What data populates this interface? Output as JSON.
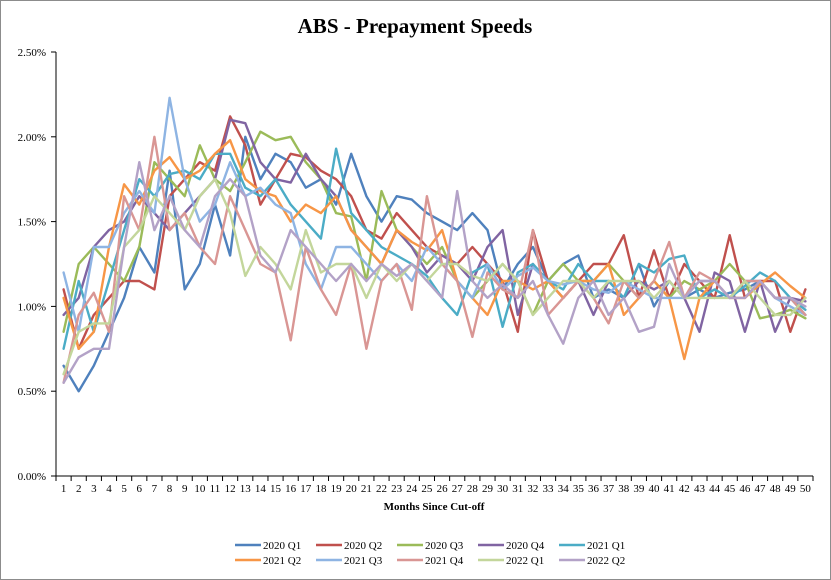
{
  "chart_data": {
    "type": "line",
    "title": "ABS - Prepayment Speeds",
    "xlabel": "Months Since Cut-off",
    "ylabel": "",
    "ylim": [
      0,
      0.025
    ],
    "ytick_values": [
      0,
      0.005,
      0.01,
      0.015,
      0.02,
      0.025
    ],
    "ytick_labels": [
      "0.00%",
      "0.50%",
      "1.00%",
      "1.50%",
      "2.00%",
      "2.50%"
    ],
    "x": [
      1,
      2,
      3,
      4,
      5,
      6,
      7,
      8,
      9,
      10,
      11,
      12,
      13,
      14,
      15,
      16,
      17,
      18,
      19,
      20,
      21,
      22,
      23,
      24,
      25,
      26,
      27,
      28,
      29,
      30,
      31,
      32,
      33,
      34,
      35,
      36,
      37,
      38,
      39,
      40,
      41,
      42,
      43,
      44,
      45,
      46,
      47,
      48,
      49,
      50
    ],
    "grid": false,
    "legend_position": "bottom",
    "series": [
      {
        "name": "2020 Q1",
        "color": "#4f81bd",
        "values": [
          0.0065,
          0.005,
          0.0065,
          0.0085,
          0.0105,
          0.0135,
          0.012,
          0.018,
          0.011,
          0.0125,
          0.016,
          0.013,
          0.02,
          0.0175,
          0.019,
          0.0185,
          0.017,
          0.0175,
          0.016,
          0.019,
          0.0165,
          0.015,
          0.0165,
          0.0163,
          0.0155,
          0.015,
          0.0145,
          0.0155,
          0.0145,
          0.011,
          0.0125,
          0.0135,
          0.0115,
          0.0125,
          0.013,
          0.0105,
          0.011,
          0.0105,
          0.0125,
          0.01,
          0.0115,
          0.0105,
          0.011,
          0.0105,
          0.0108,
          0.011,
          0.0115,
          0.0105,
          0.0105,
          0.0095
        ]
      },
      {
        "name": "2020 Q2",
        "color": "#c0504d",
        "values": [
          0.011,
          0.0075,
          0.0095,
          0.0105,
          0.0115,
          0.0115,
          0.011,
          0.0165,
          0.0175,
          0.0185,
          0.018,
          0.0212,
          0.0195,
          0.016,
          0.0175,
          0.019,
          0.0188,
          0.018,
          0.0175,
          0.0165,
          0.0145,
          0.014,
          0.0155,
          0.0145,
          0.0135,
          0.013,
          0.0125,
          0.0135,
          0.0125,
          0.0115,
          0.0085,
          0.0145,
          0.0115,
          0.0105,
          0.0115,
          0.0125,
          0.0125,
          0.0142,
          0.0105,
          0.0133,
          0.0105,
          0.0125,
          0.0115,
          0.0105,
          0.0142,
          0.0105,
          0.0115,
          0.0115,
          0.0085,
          0.011
        ]
      },
      {
        "name": "2020 Q3",
        "color": "#9bbb59",
        "values": [
          0.0085,
          0.0125,
          0.0135,
          0.0125,
          0.0115,
          0.0135,
          0.0185,
          0.0175,
          0.0165,
          0.0195,
          0.0175,
          0.0168,
          0.0185,
          0.0203,
          0.0198,
          0.02,
          0.0185,
          0.0175,
          0.0155,
          0.0153,
          0.0115,
          0.0168,
          0.0145,
          0.0135,
          0.0125,
          0.0135,
          0.0115,
          0.0105,
          0.0115,
          0.0125,
          0.0115,
          0.0095,
          0.0115,
          0.0125,
          0.0115,
          0.0115,
          0.0125,
          0.0115,
          0.0105,
          0.0115,
          0.0105,
          0.0115,
          0.011,
          0.0115,
          0.0125,
          0.0115,
          0.0093,
          0.0095,
          0.0098,
          0.0093
        ]
      },
      {
        "name": "2020 Q4",
        "color": "#8064a2",
        "values": [
          0.0095,
          0.0105,
          0.0135,
          0.0145,
          0.015,
          0.0165,
          0.0155,
          0.0145,
          0.0155,
          0.0165,
          0.0175,
          0.021,
          0.0208,
          0.0185,
          0.0175,
          0.0173,
          0.019,
          0.0175,
          0.0165,
          0.0145,
          0.0135,
          0.0125,
          0.0145,
          0.0135,
          0.012,
          0.013,
          0.0125,
          0.0115,
          0.0135,
          0.0145,
          0.0095,
          0.0125,
          0.0115,
          0.0105,
          0.0115,
          0.0095,
          0.0115,
          0.0105,
          0.0115,
          0.011,
          0.0115,
          0.0105,
          0.0085,
          0.012,
          0.0115,
          0.0085,
          0.0115,
          0.0085,
          0.0105,
          0.0103
        ]
      },
      {
        "name": "2021 Q1",
        "color": "#4bacc6",
        "values": [
          0.0075,
          0.0115,
          0.0085,
          0.0115,
          0.0145,
          0.0175,
          0.0165,
          0.0178,
          0.018,
          0.0175,
          0.019,
          0.019,
          0.017,
          0.0165,
          0.0175,
          0.016,
          0.015,
          0.014,
          0.0193,
          0.0155,
          0.0145,
          0.0135,
          0.013,
          0.0125,
          0.0118,
          0.0105,
          0.0095,
          0.012,
          0.0125,
          0.0088,
          0.012,
          0.0125,
          0.0115,
          0.011,
          0.0125,
          0.0115,
          0.0115,
          0.0105,
          0.0125,
          0.012,
          0.0128,
          0.013,
          0.0105,
          0.011,
          0.0105,
          0.0112,
          0.012,
          0.0115,
          0.0105,
          0.0098
        ]
      },
      {
        "name": "2021 Q2",
        "color": "#f79646",
        "values": [
          0.0105,
          0.0075,
          0.0085,
          0.0135,
          0.0172,
          0.016,
          0.018,
          0.0188,
          0.0175,
          0.018,
          0.019,
          0.0198,
          0.0175,
          0.0168,
          0.0165,
          0.015,
          0.016,
          0.0155,
          0.0165,
          0.0145,
          0.0135,
          0.0125,
          0.0145,
          0.0138,
          0.0133,
          0.0145,
          0.0115,
          0.0105,
          0.0095,
          0.0115,
          0.0115,
          0.011,
          0.0115,
          0.0105,
          0.0115,
          0.0115,
          0.0125,
          0.0095,
          0.0105,
          0.0115,
          0.0105,
          0.0069,
          0.0105,
          0.0115,
          0.0105,
          0.0105,
          0.0113,
          0.012,
          0.0112,
          0.0105
        ]
      },
      {
        "name": "2021 Q3",
        "color": "#8eb4e3",
        "values": [
          0.012,
          0.0085,
          0.0135,
          0.0135,
          0.0155,
          0.0168,
          0.0155,
          0.0223,
          0.0175,
          0.015,
          0.016,
          0.0185,
          0.0165,
          0.017,
          0.016,
          0.0155,
          0.0125,
          0.011,
          0.0135,
          0.0135,
          0.0125,
          0.0115,
          0.0125,
          0.0115,
          0.0135,
          0.0125,
          0.0115,
          0.0105,
          0.0125,
          0.011,
          0.0118,
          0.0123,
          0.0115,
          0.0113,
          0.0115,
          0.011,
          0.0108,
          0.0115,
          0.011,
          0.0105,
          0.0105,
          0.0105,
          0.0115,
          0.0115,
          0.0105,
          0.0115,
          0.0115,
          0.0105,
          0.01,
          0.0095
        ]
      },
      {
        "name": "2021 Q4",
        "color": "#d99694",
        "values": [
          0.0055,
          0.0095,
          0.0108,
          0.0085,
          0.0165,
          0.0145,
          0.02,
          0.0145,
          0.0155,
          0.0135,
          0.0125,
          0.0165,
          0.0145,
          0.0125,
          0.012,
          0.008,
          0.0135,
          0.011,
          0.0095,
          0.0125,
          0.0075,
          0.0115,
          0.0125,
          0.0098,
          0.0165,
          0.0125,
          0.0115,
          0.0082,
          0.012,
          0.011,
          0.0105,
          0.0145,
          0.0095,
          0.0105,
          0.0115,
          0.0105,
          0.009,
          0.0115,
          0.0105,
          0.0115,
          0.0138,
          0.0105,
          0.012,
          0.0115,
          0.0105,
          0.0115,
          0.0115,
          0.0105,
          0.0105,
          0.0095
        ]
      },
      {
        "name": "2022 Q1",
        "color": "#c3d69b",
        "values": [
          0.006,
          0.0085,
          0.009,
          0.009,
          0.0135,
          0.0145,
          0.0165,
          0.0155,
          0.0145,
          0.0165,
          0.0175,
          0.0155,
          0.0118,
          0.0135,
          0.0125,
          0.011,
          0.0145,
          0.012,
          0.0125,
          0.0125,
          0.0105,
          0.0125,
          0.0115,
          0.0125,
          0.0115,
          0.0125,
          0.0125,
          0.0118,
          0.0115,
          0.0125,
          0.0115,
          0.0095,
          0.0105,
          0.0115,
          0.0115,
          0.0105,
          0.0115,
          0.0115,
          0.0115,
          0.0105,
          0.0115,
          0.0105,
          0.0105,
          0.0105,
          0.0105,
          0.0115,
          0.0105,
          0.0095,
          0.0095,
          0.0105
        ]
      },
      {
        "name": "2022 Q2",
        "color": "#b3a2c7",
        "values": [
          0.0055,
          0.007,
          0.0075,
          0.0075,
          0.0135,
          0.0185,
          0.0145,
          0.0165,
          0.0145,
          0.0135,
          0.0165,
          0.0175,
          0.0165,
          0.013,
          0.012,
          0.0145,
          0.0135,
          0.0125,
          0.0115,
          0.0125,
          0.0115,
          0.0125,
          0.0118,
          0.0125,
          0.0115,
          0.0105,
          0.0168,
          0.0115,
          0.0105,
          0.0113,
          0.0105,
          0.0115,
          0.0095,
          0.0078,
          0.0105,
          0.0115,
          0.0095,
          0.0105,
          0.0085,
          0.0088,
          0.0125,
          0.0105,
          0.0115,
          0.0115,
          0.0105,
          0.0105,
          0.0115,
          0.0105,
          0.0105,
          0.01
        ]
      }
    ]
  }
}
